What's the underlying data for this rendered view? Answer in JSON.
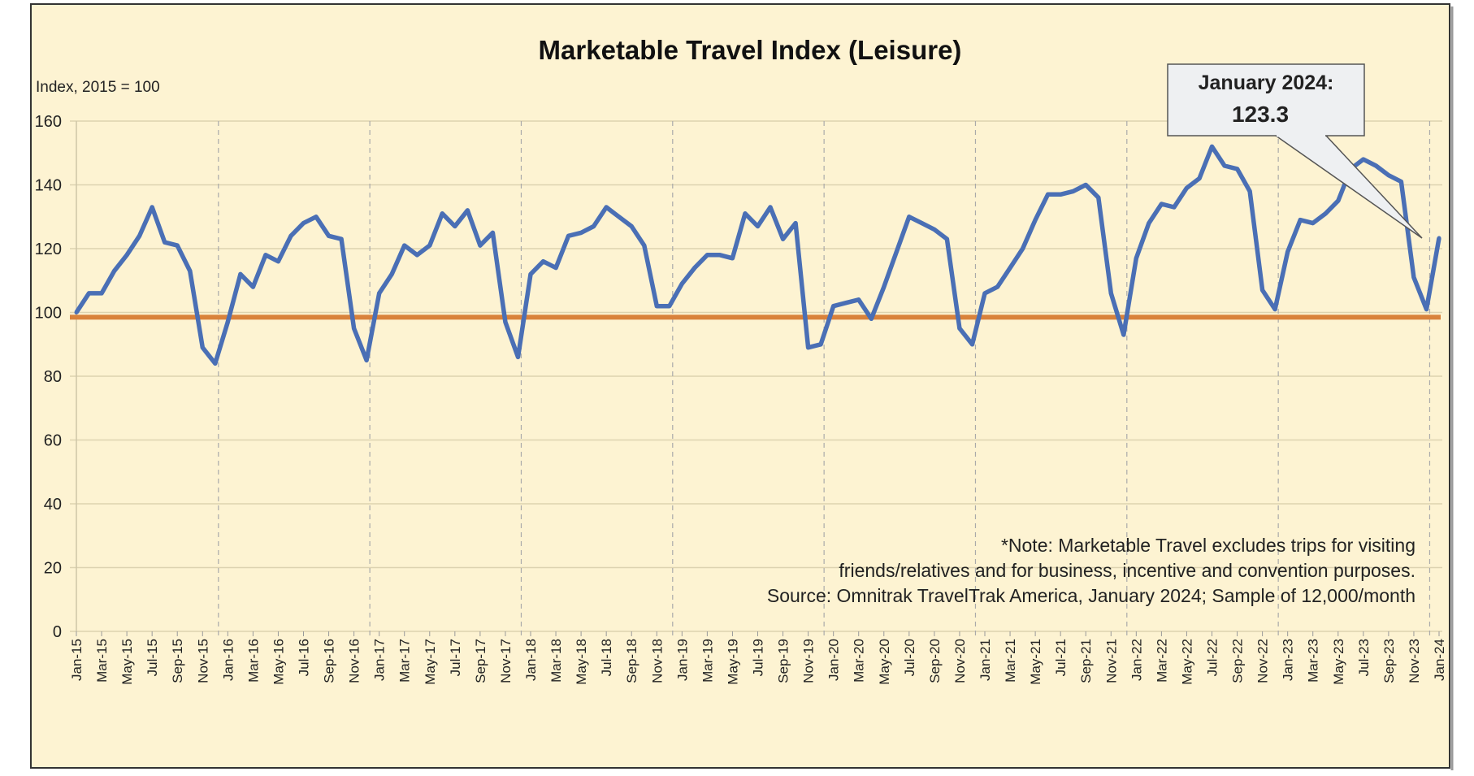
{
  "chart_data": {
    "type": "line",
    "title": "Marketable Travel Index (Leisure)",
    "ylabel": "Index, 2015 = 100",
    "xlabel": "",
    "ylim": [
      0,
      160
    ],
    "yticks": [
      0,
      20,
      40,
      60,
      80,
      100,
      120,
      140,
      160
    ],
    "grid": {
      "horizontal": true,
      "vertical_dashed_at": "December each year"
    },
    "reference_line": {
      "value": 98.5,
      "color": "#D9823B"
    },
    "series_color": "#4A6FB5",
    "background": "#FDF3D2",
    "x": [
      "Jan-15",
      "Feb-15",
      "Mar-15",
      "Apr-15",
      "May-15",
      "Jun-15",
      "Jul-15",
      "Aug-15",
      "Sep-15",
      "Oct-15",
      "Nov-15",
      "Dec-15",
      "Jan-16",
      "Feb-16",
      "Mar-16",
      "Apr-16",
      "May-16",
      "Jun-16",
      "Jul-16",
      "Aug-16",
      "Sep-16",
      "Oct-16",
      "Nov-16",
      "Dec-16",
      "Jan-17",
      "Feb-17",
      "Mar-17",
      "Apr-17",
      "May-17",
      "Jun-17",
      "Jul-17",
      "Aug-17",
      "Sep-17",
      "Oct-17",
      "Nov-17",
      "Dec-17",
      "Jan-18",
      "Feb-18",
      "Mar-18",
      "Apr-18",
      "May-18",
      "Jun-18",
      "Jul-18",
      "Aug-18",
      "Sep-18",
      "Oct-18",
      "Nov-18",
      "Dec-18",
      "Jan-19",
      "Feb-19",
      "Mar-19",
      "Apr-19",
      "May-19",
      "Jun-19",
      "Jul-19",
      "Aug-19",
      "Sep-19",
      "Oct-19",
      "Nov-19",
      "Dec-19",
      "Jan-20",
      "Feb-20",
      "Mar-20",
      "Apr-20",
      "May-20",
      "Jun-20",
      "Jul-20",
      "Aug-20",
      "Sep-20",
      "Oct-20",
      "Nov-20",
      "Dec-20",
      "Jan-21",
      "Feb-21",
      "Mar-21",
      "Apr-21",
      "May-21",
      "Jun-21",
      "Jul-21",
      "Aug-21",
      "Sep-21",
      "Oct-21",
      "Nov-21",
      "Dec-21",
      "Jan-22",
      "Feb-22",
      "Mar-22",
      "Apr-22",
      "May-22",
      "Jun-22",
      "Jul-22",
      "Aug-22",
      "Sep-22",
      "Oct-22",
      "Nov-22",
      "Dec-22",
      "Jan-23",
      "Feb-23",
      "Mar-23",
      "Apr-23",
      "May-23",
      "Jun-23",
      "Jul-23",
      "Aug-23",
      "Sep-23",
      "Oct-23",
      "Nov-23",
      "Dec-23",
      "Jan-24"
    ],
    "values": [
      100,
      106,
      106,
      113,
      118,
      124,
      133,
      122,
      121,
      113,
      89,
      84,
      97,
      112,
      108,
      118,
      116,
      124,
      128,
      130,
      124,
      123,
      95,
      85,
      106,
      112,
      121,
      118,
      121,
      131,
      127,
      132,
      121,
      125,
      97,
      86,
      112,
      116,
      114,
      124,
      125,
      127,
      133,
      130,
      127,
      121,
      102,
      102,
      109,
      114,
      118,
      118,
      117,
      131,
      127,
      133,
      123,
      128,
      89,
      90,
      102,
      103,
      104,
      98,
      108,
      119,
      130,
      128,
      126,
      123,
      95,
      90,
      106,
      108,
      114,
      120,
      129,
      137,
      137,
      138,
      140,
      136,
      106,
      93,
      117,
      128,
      134,
      133,
      139,
      142,
      152,
      146,
      145,
      138,
      107,
      101,
      119,
      129,
      128,
      131,
      135,
      145,
      148,
      146,
      143,
      141,
      111,
      101,
      123.3
    ],
    "annotation": {
      "line1": "January 2024:",
      "line2": "123.3"
    },
    "notes": [
      "*Note: Marketable Travel excludes trips for visiting",
      "friends/relatives and for business, incentive and convention purposes.",
      "Source: Omnitrak TravelTrak America, January 2024; Sample of 12,000/month"
    ]
  }
}
